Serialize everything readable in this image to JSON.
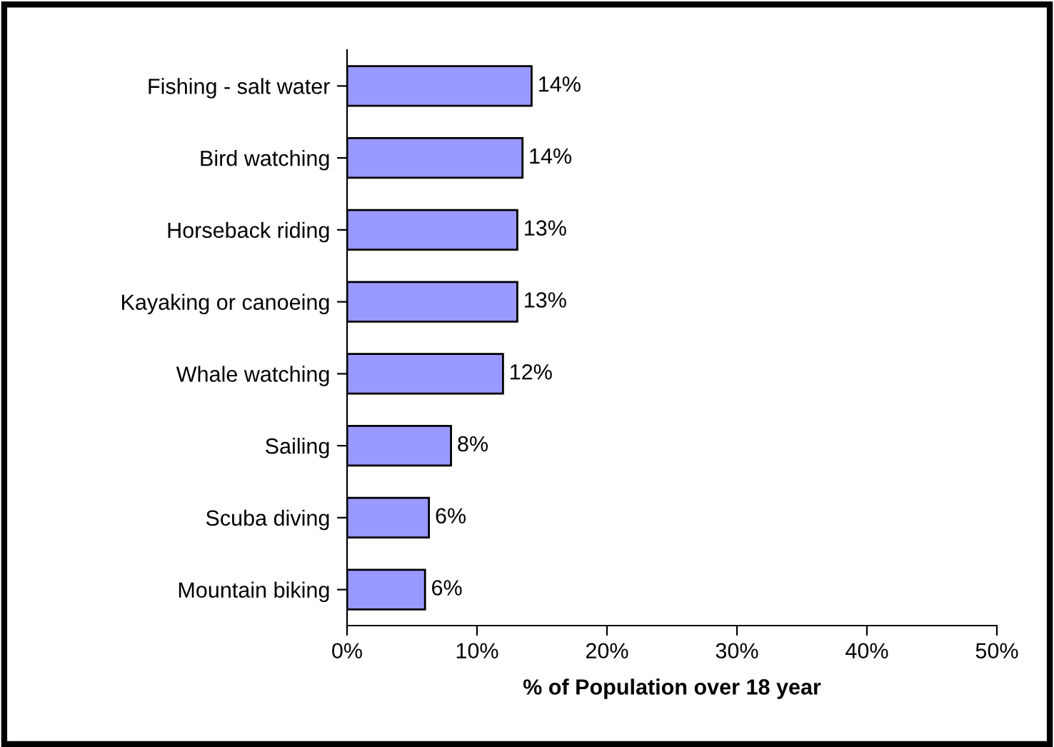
{
  "chart_data": {
    "type": "bar",
    "orientation": "horizontal",
    "categories": [
      "Fishing - salt water",
      "Bird watching",
      "Horseback riding",
      "Kayaking or canoeing",
      "Whale watching",
      "Sailing",
      "Scuba diving",
      "Mountain biking"
    ],
    "values": [
      14.2,
      13.5,
      13.1,
      13.1,
      12.0,
      8.0,
      6.3,
      6.0
    ],
    "value_labels": [
      "14%",
      "14%",
      "13%",
      "13%",
      "12%",
      "8%",
      "6%",
      "6%"
    ],
    "color": "#9999ff",
    "xlabel": "% of Population over 18 year",
    "xlim": [
      0,
      50
    ],
    "xticks": [
      {
        "value": 0,
        "label": "0%"
      },
      {
        "value": 10,
        "label": "10%"
      },
      {
        "value": 20,
        "label": "20%"
      },
      {
        "value": 30,
        "label": "30%"
      },
      {
        "value": 40,
        "label": "40%"
      },
      {
        "value": 50,
        "label": "50%"
      }
    ],
    "grid": false,
    "legend": false
  }
}
